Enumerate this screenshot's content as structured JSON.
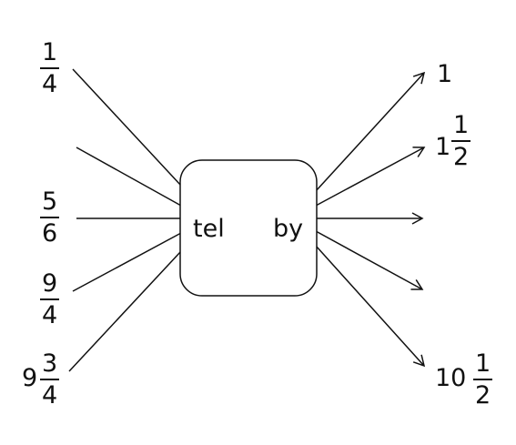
{
  "machine": {
    "input_label": "tel",
    "output_label": "by"
  },
  "inputs": [
    {
      "whole": "",
      "numerator": "1",
      "denominator": "4"
    },
    {
      "whole": "",
      "numerator": "",
      "denominator": ""
    },
    {
      "whole": "",
      "numerator": "5",
      "denominator": "6"
    },
    {
      "whole": "",
      "numerator": "9",
      "denominator": "4"
    },
    {
      "whole": "9",
      "numerator": "3",
      "denominator": "4"
    }
  ],
  "outputs": [
    {
      "whole": "1",
      "numerator": "",
      "denominator": ""
    },
    {
      "whole": "1",
      "numerator": "1",
      "denominator": "2"
    },
    {
      "whole": "",
      "numerator": "",
      "denominator": ""
    },
    {
      "whole": "",
      "numerator": "",
      "denominator": ""
    },
    {
      "whole": "10",
      "numerator": "1",
      "denominator": "2"
    }
  ]
}
